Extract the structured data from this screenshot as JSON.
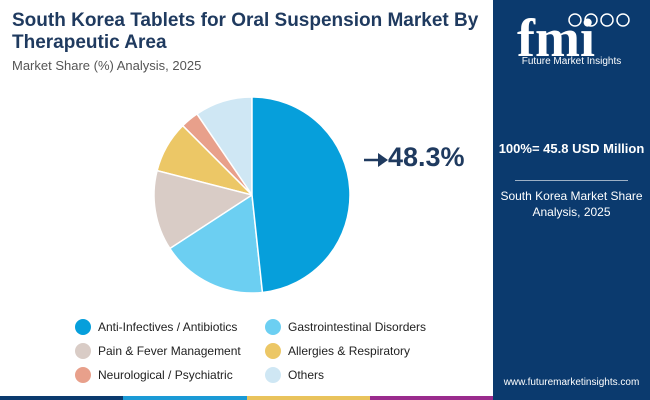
{
  "header": {
    "title": "South Korea Tablets for Oral Suspension Market By Therapeutic Area",
    "subtitle": "Market Share (%) Analysis, 2025"
  },
  "callout": {
    "value": "48.3%"
  },
  "sidebar": {
    "logo_text": "Future Market Insights",
    "total": "100%= 45.8 USD Million",
    "description": "South Korea Market Share Analysis, 2025",
    "website": "www.futuremarketinsights.com"
  },
  "colors": {
    "sidebar_bg": "#0b3a6e",
    "title": "#1f3a5f",
    "bar": [
      "#0b3a6e",
      "#1b9ad6",
      "#e9c35c",
      "#9a2b8d"
    ]
  },
  "chart_data": {
    "type": "pie",
    "title": "South Korea Tablets for Oral Suspension Market By Therapeutic Area",
    "subtitle": "Market Share (%) Analysis, 2025",
    "legend_position": "bottom",
    "slices": [
      {
        "label": "Anti-Infectives / Antibiotics",
        "value": 48.3,
        "color": "#069fdb"
      },
      {
        "label": "Gastrointestinal Disorders",
        "value": 17.5,
        "color": "#6ccff2"
      },
      {
        "label": "Pain & Fever Management",
        "value": 13.2,
        "color": "#d9ccc6"
      },
      {
        "label": "Allergies & Respiratory",
        "value": 8.5,
        "color": "#ecc766"
      },
      {
        "label": "Neurological / Psychiatric",
        "value": 3.0,
        "color": "#e8a08b"
      },
      {
        "label": "Others",
        "value": 9.5,
        "color": "#cfe7f4"
      }
    ]
  }
}
